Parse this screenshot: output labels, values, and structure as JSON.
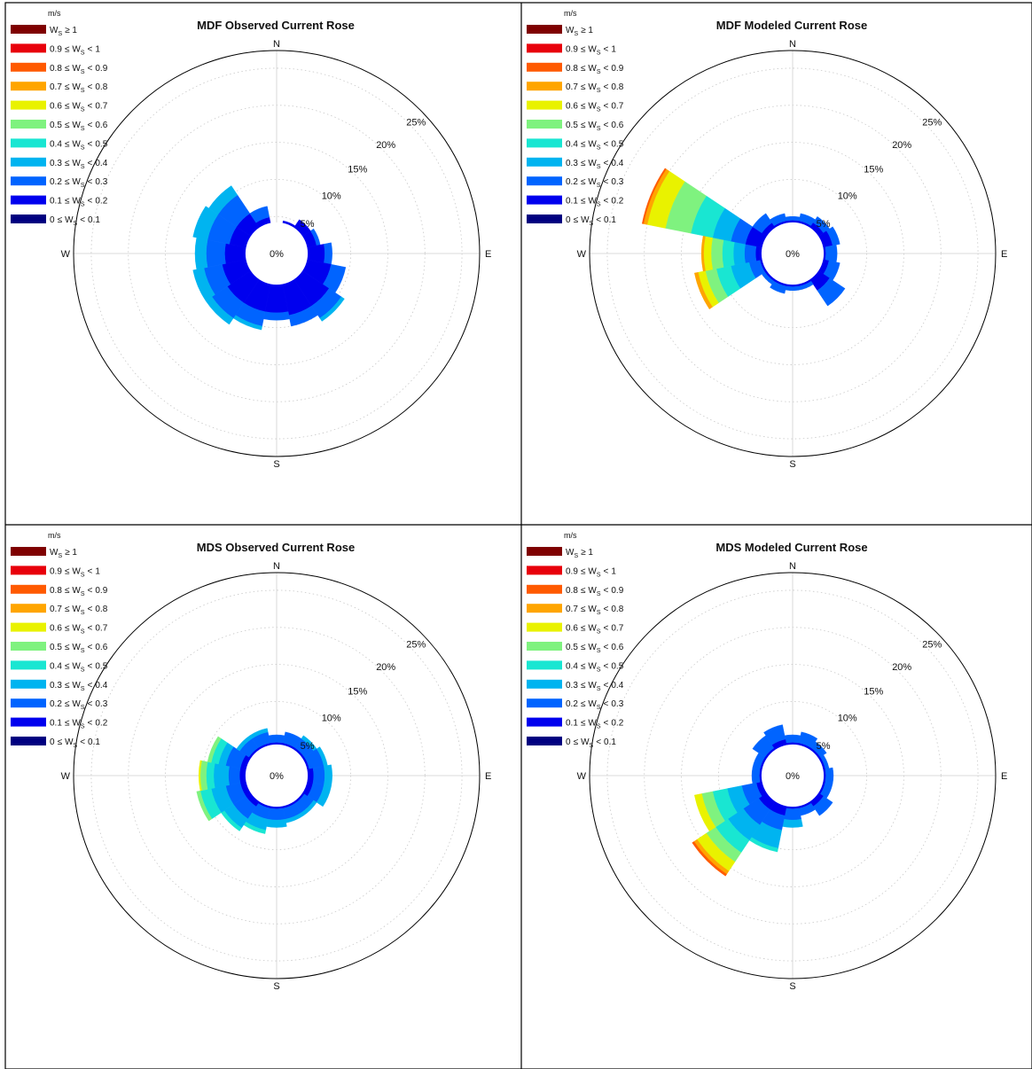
{
  "legend": {
    "unit": "m/s",
    "symbol_base": "W",
    "symbol_sub": "S",
    "bins": [
      {
        "lo": "",
        "hi": "",
        "top": "≥ 1",
        "color": "#7f0000"
      },
      {
        "lo": "0.9",
        "hi": "1",
        "top": "",
        "color": "#e8000b"
      },
      {
        "lo": "0.8",
        "hi": "0.9",
        "top": "",
        "color": "#ff5a00"
      },
      {
        "lo": "0.7",
        "hi": "0.8",
        "top": "",
        "color": "#ffa500"
      },
      {
        "lo": "0.6",
        "hi": "0.7",
        "top": "",
        "color": "#e9f200"
      },
      {
        "lo": "0.5",
        "hi": "0.6",
        "top": "",
        "color": "#7ff27f"
      },
      {
        "lo": "0.4",
        "hi": "0.5",
        "top": "",
        "color": "#19e6d2"
      },
      {
        "lo": "0.3",
        "hi": "0.4",
        "top": "",
        "color": "#00b4f0"
      },
      {
        "lo": "0.2",
        "hi": "0.3",
        "top": "",
        "color": "#0064ff"
      },
      {
        "lo": "0.1",
        "hi": "0.2",
        "top": "",
        "color": "#0000ee"
      },
      {
        "lo": "0",
        "hi": "0.1",
        "top": "",
        "color": "#000080"
      }
    ]
  },
  "compass": {
    "n": "N",
    "e": "E",
    "s": "S",
    "w": "W"
  },
  "center_label": "0%",
  "ring_labels": [
    "5%",
    "10%",
    "15%",
    "20%",
    "25%"
  ],
  "chart_data": [
    {
      "type": "windrose",
      "title": "MDF Observed Current Rose",
      "rmax": 25,
      "directions_deg": [
        0,
        22.5,
        45,
        67.5,
        90,
        112.5,
        135,
        157.5,
        180,
        202.5,
        225,
        247.5,
        270,
        292.5,
        315,
        337.5
      ],
      "bin_edges_ms": [
        0,
        0.1,
        0.2,
        0.3,
        0.4,
        0.5,
        0.6,
        0.7,
        0.8,
        0.9,
        1
      ],
      "cumulative_percent_by_direction": [
        [
          1.5,
          3.5,
          3.5,
          3.5,
          3.5,
          3.5,
          3.5,
          3.5,
          3.5,
          3.5,
          3.5
        ],
        [
          2.0,
          4.5,
          4.5,
          4.5,
          4.5,
          4.5,
          4.5,
          4.5,
          4.5,
          4.5,
          4.5
        ],
        [
          2.5,
          5.5,
          5.5,
          5.5,
          5.5,
          5.5,
          5.5,
          5.5,
          5.5,
          5.5,
          5.5
        ],
        [
          3.0,
          5.5,
          6.0,
          6.0,
          6.0,
          6.0,
          6.0,
          6.0,
          6.0,
          6.0,
          6.0
        ],
        [
          3.0,
          6.5,
          7.5,
          7.5,
          7.5,
          7.5,
          7.5,
          7.5,
          7.5,
          7.5,
          7.5
        ],
        [
          3.5,
          7.5,
          9.5,
          9.5,
          9.5,
          9.5,
          9.5,
          9.5,
          9.5,
          9.5,
          9.5
        ],
        [
          4.0,
          8.5,
          10.5,
          11.0,
          11.0,
          11.0,
          11.0,
          11.0,
          11.0,
          11.0,
          11.0
        ],
        [
          4.0,
          8.5,
          10.0,
          10.0,
          10.0,
          10.0,
          10.0,
          10.0,
          10.0,
          10.0,
          10.0
        ],
        [
          4.0,
          8.0,
          9.0,
          9.0,
          9.0,
          9.0,
          9.0,
          9.0,
          9.0,
          9.0,
          9.0
        ],
        [
          4.0,
          8.0,
          10.0,
          10.5,
          10.5,
          10.5,
          10.5,
          10.5,
          10.5,
          10.5,
          10.5
        ],
        [
          4.0,
          8.0,
          10.5,
          11.5,
          11.5,
          11.5,
          11.5,
          11.5,
          11.5,
          11.5,
          11.5
        ],
        [
          4.0,
          7.5,
          10.0,
          11.5,
          11.5,
          11.5,
          11.5,
          11.5,
          11.5,
          11.5,
          11.5
        ],
        [
          3.5,
          7.0,
          9.5,
          11.0,
          11.0,
          11.0,
          11.0,
          11.0,
          11.0,
          11.0,
          11.0
        ],
        [
          3.0,
          6.5,
          9.5,
          11.5,
          11.5,
          11.5,
          11.5,
          11.5,
          11.5,
          11.5,
          11.5
        ],
        [
          3.0,
          6.5,
          9.5,
          11.0,
          11.0,
          11.0,
          11.0,
          11.0,
          11.0,
          11.0,
          11.0
        ],
        [
          2.0,
          5.0,
          6.5,
          6.5,
          6.5,
          6.5,
          6.5,
          6.5,
          6.5,
          6.5,
          6.5
        ]
      ]
    },
    {
      "type": "windrose",
      "title": "MDF Modeled Current Rose",
      "rmax": 25,
      "directions_deg": [
        0,
        22.5,
        45,
        67.5,
        90,
        112.5,
        135,
        157.5,
        180,
        202.5,
        225,
        247.5,
        270,
        292.5,
        315,
        337.5
      ],
      "bin_edges_ms": [
        0,
        0.1,
        0.2,
        0.3,
        0.4,
        0.5,
        0.6,
        0.7,
        0.8,
        0.9,
        1
      ],
      "cumulative_percent_by_direction": [
        [
          2.5,
          4.5,
          5.0,
          5.0,
          5.0,
          5.0,
          5.0,
          5.0,
          5.0,
          5.0,
          5.0
        ],
        [
          2.5,
          4.5,
          5.5,
          5.5,
          5.5,
          5.5,
          5.5,
          5.5,
          5.5,
          5.5,
          5.5
        ],
        [
          3.0,
          5.0,
          6.0,
          6.0,
          6.0,
          6.0,
          6.0,
          6.0,
          6.0,
          6.0,
          6.0
        ],
        [
          2.5,
          5.5,
          6.5,
          6.5,
          6.5,
          6.5,
          6.5,
          6.5,
          6.5,
          6.5,
          6.5
        ],
        [
          2.0,
          4.5,
          6.0,
          6.0,
          6.0,
          6.0,
          6.0,
          6.0,
          6.0,
          6.0,
          6.0
        ],
        [
          2.5,
          5.0,
          6.5,
          6.5,
          6.5,
          6.5,
          6.5,
          6.5,
          6.5,
          6.5,
          6.5
        ],
        [
          3.0,
          6.0,
          8.5,
          8.5,
          8.5,
          8.5,
          8.5,
          8.5,
          8.5,
          8.5,
          8.5
        ],
        [
          2.5,
          4.5,
          5.0,
          5.0,
          5.0,
          5.0,
          5.0,
          5.0,
          5.0,
          5.0,
          5.0
        ],
        [
          2.5,
          4.5,
          5.0,
          5.0,
          5.0,
          5.0,
          5.0,
          5.0,
          5.0,
          5.0,
          5.0
        ],
        [
          2.5,
          4.5,
          5.5,
          5.5,
          5.5,
          5.5,
          5.5,
          5.5,
          5.5,
          5.5,
          5.5
        ],
        [
          2.5,
          4.5,
          5.0,
          5.0,
          5.0,
          5.0,
          5.0,
          5.0,
          5.0,
          5.0,
          5.0
        ],
        [
          3.0,
          4.5,
          6.0,
          8.5,
          10.5,
          12.0,
          13.0,
          13.5,
          13.5,
          13.5,
          13.5
        ],
        [
          3.0,
          5.0,
          6.5,
          8.0,
          9.5,
          11.0,
          12.0,
          12.3,
          12.3,
          12.3,
          12.3
        ],
        [
          3.5,
          6.5,
          8.5,
          11.0,
          14.0,
          17.5,
          20.0,
          20.5,
          20.7,
          20.7,
          20.7
        ],
        [
          3.0,
          5.0,
          6.5,
          6.5,
          6.5,
          6.5,
          6.5,
          6.5,
          6.5,
          6.5,
          6.5
        ],
        [
          2.5,
          4.5,
          5.5,
          5.5,
          5.5,
          5.5,
          5.5,
          5.5,
          5.5,
          5.5,
          5.5
        ]
      ]
    },
    {
      "type": "windrose",
      "title": "MDS Observed Current Rose",
      "rmax": 25,
      "directions_deg": [
        0,
        22.5,
        45,
        67.5,
        90,
        112.5,
        135,
        157.5,
        180,
        202.5,
        225,
        247.5,
        270,
        292.5,
        315,
        337.5
      ],
      "bin_edges_ms": [
        0,
        0.1,
        0.2,
        0.3,
        0.4,
        0.5,
        0.6,
        0.7,
        0.8,
        0.9,
        1
      ],
      "cumulative_percent_by_direction": [
        [
          2.5,
          4.5,
          5.5,
          5.5,
          5.5,
          5.5,
          5.5,
          5.5,
          5.5,
          5.5,
          5.5
        ],
        [
          2.5,
          4.5,
          6.0,
          6.0,
          6.0,
          6.0,
          6.0,
          6.0,
          6.0,
          6.0,
          6.0
        ],
        [
          2.5,
          4.5,
          6.0,
          6.5,
          6.5,
          6.5,
          6.5,
          6.5,
          6.5,
          6.5,
          6.5
        ],
        [
          2.5,
          4.5,
          6.5,
          7.0,
          7.0,
          7.0,
          7.0,
          7.0,
          7.0,
          7.0,
          7.0
        ],
        [
          2.5,
          5.0,
          6.5,
          7.5,
          7.5,
          7.5,
          7.5,
          7.5,
          7.5,
          7.5,
          7.5
        ],
        [
          2.5,
          5.0,
          6.5,
          7.5,
          7.5,
          7.5,
          7.5,
          7.5,
          7.5,
          7.5,
          7.5
        ],
        [
          2.5,
          4.5,
          6.0,
          6.5,
          6.5,
          6.5,
          6.5,
          6.5,
          6.5,
          6.5,
          6.5
        ],
        [
          2.5,
          4.5,
          6.0,
          6.5,
          6.5,
          6.5,
          6.5,
          6.5,
          6.5,
          6.5,
          6.5
        ],
        [
          2.5,
          4.5,
          6.0,
          7.0,
          7.0,
          7.0,
          7.0,
          7.0,
          7.0,
          7.0,
          7.0
        ],
        [
          2.5,
          4.5,
          6.0,
          7.5,
          8.0,
          8.0,
          8.0,
          8.0,
          8.0,
          8.0,
          8.0
        ],
        [
          2.5,
          5.0,
          7.0,
          8.5,
          9.0,
          9.0,
          9.0,
          9.0,
          9.0,
          9.0,
          9.0
        ],
        [
          2.5,
          5.0,
          7.0,
          9.0,
          10.5,
          11.0,
          11.0,
          11.0,
          11.0,
          11.0,
          11.0
        ],
        [
          2.5,
          5.0,
          6.5,
          8.5,
          9.5,
          10.3,
          10.5,
          10.5,
          10.5,
          10.5,
          10.5
        ],
        [
          2.5,
          5.0,
          7.0,
          8.0,
          9.0,
          9.5,
          9.5,
          9.5,
          9.5,
          9.5,
          9.5
        ],
        [
          2.5,
          4.5,
          6.0,
          6.5,
          6.5,
          6.5,
          6.5,
          6.5,
          6.5,
          6.5,
          6.5
        ],
        [
          2.5,
          4.5,
          6.0,
          6.5,
          6.5,
          6.5,
          6.5,
          6.5,
          6.5,
          6.5,
          6.5
        ]
      ]
    },
    {
      "type": "windrose",
      "title": "MDS Modeled Current Rose",
      "rmax": 25,
      "directions_deg": [
        0,
        22.5,
        45,
        67.5,
        90,
        112.5,
        135,
        157.5,
        180,
        202.5,
        225,
        247.5,
        270,
        292.5,
        315,
        337.5
      ],
      "bin_edges_ms": [
        0,
        0.1,
        0.2,
        0.3,
        0.4,
        0.5,
        0.6,
        0.7,
        0.8,
        0.9,
        1
      ],
      "cumulative_percent_by_direction": [
        [
          2.5,
          4.5,
          5.5,
          5.5,
          5.5,
          5.5,
          5.5,
          5.5,
          5.5,
          5.5,
          5.5
        ],
        [
          2.5,
          4.5,
          6.0,
          6.0,
          6.0,
          6.0,
          6.0,
          6.0,
          6.0,
          6.0,
          6.0
        ],
        [
          2.5,
          4.5,
          5.5,
          5.5,
          5.5,
          5.5,
          5.5,
          5.5,
          5.5,
          5.5,
          5.5
        ],
        [
          2.5,
          4.5,
          5.0,
          5.0,
          5.0,
          5.0,
          5.0,
          5.0,
          5.0,
          5.0,
          5.0
        ],
        [
          2.5,
          4.5,
          5.5,
          5.5,
          5.5,
          5.5,
          5.5,
          5.5,
          5.5,
          5.5,
          5.5
        ],
        [
          2.5,
          4.5,
          5.5,
          5.5,
          5.5,
          5.5,
          5.5,
          5.5,
          5.5,
          5.5,
          5.5
        ],
        [
          2.5,
          5.0,
          6.5,
          6.5,
          6.5,
          6.5,
          6.5,
          6.5,
          6.5,
          6.5,
          6.5
        ],
        [
          2.5,
          4.5,
          5.5,
          5.5,
          5.5,
          5.5,
          5.5,
          5.5,
          5.5,
          5.5,
          5.5
        ],
        [
          2.5,
          4.5,
          6.0,
          7.0,
          7.0,
          7.0,
          7.0,
          7.0,
          7.0,
          7.0,
          7.0
        ],
        [
          3.0,
          5.5,
          7.5,
          10.0,
          10.5,
          10.5,
          10.5,
          10.5,
          10.5,
          10.5,
          10.5
        ],
        [
          3.0,
          5.5,
          8.0,
          10.5,
          12.5,
          14.0,
          15.5,
          16.0,
          16.3,
          16.3,
          16.3
        ],
        [
          3.0,
          5.0,
          7.0,
          9.0,
          11.0,
          12.5,
          13.5,
          13.5,
          13.5,
          13.5,
          13.5
        ],
        [
          2.5,
          4.5,
          5.5,
          5.5,
          5.5,
          5.5,
          5.5,
          5.5,
          5.5,
          5.5,
          5.5
        ],
        [
          2.5,
          4.5,
          5.5,
          5.5,
          5.5,
          5.5,
          5.5,
          5.5,
          5.5,
          5.5,
          5.5
        ],
        [
          2.5,
          4.5,
          6.5,
          6.5,
          6.5,
          6.5,
          6.5,
          6.5,
          6.5,
          6.5,
          6.5
        ],
        [
          2.5,
          5.0,
          7.0,
          7.0,
          7.0,
          7.0,
          7.0,
          7.0,
          7.0,
          7.0,
          7.0
        ]
      ]
    }
  ]
}
